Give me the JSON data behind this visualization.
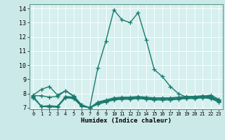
{
  "xlabel": "Humidex (Indice chaleur)",
  "bg_color": "#cce9e9",
  "plot_bg_color": "#d6efef",
  "grid_color": "#b0d0d0",
  "line_color": "#1a7a6e",
  "xlim": [
    -0.5,
    23.5
  ],
  "ylim": [
    6.9,
    14.3
  ],
  "xticks": [
    0,
    1,
    2,
    3,
    4,
    5,
    6,
    7,
    8,
    9,
    10,
    11,
    12,
    13,
    14,
    15,
    16,
    17,
    18,
    19,
    20,
    21,
    22,
    23
  ],
  "yticks": [
    7,
    8,
    9,
    10,
    11,
    12,
    13,
    14
  ],
  "series": [
    {
      "x": [
        0,
        1,
        2,
        3,
        4,
        5,
        6,
        7,
        8,
        9,
        10,
        11,
        12,
        13,
        14,
        15,
        16,
        17,
        18,
        19,
        20,
        21,
        22,
        23
      ],
      "y": [
        7.9,
        8.3,
        8.5,
        7.9,
        8.2,
        7.85,
        7.2,
        7.0,
        9.8,
        11.7,
        13.9,
        13.2,
        13.0,
        13.7,
        11.8,
        9.7,
        9.2,
        8.5,
        8.0,
        7.75,
        7.7,
        7.8,
        7.9,
        7.6
      ]
    },
    {
      "x": [
        0,
        1,
        2,
        3,
        4,
        5,
        6,
        7,
        8,
        9,
        10,
        11,
        12,
        13,
        14,
        15,
        16,
        17,
        18,
        19,
        20,
        21,
        22,
        23
      ],
      "y": [
        7.85,
        7.85,
        7.75,
        7.8,
        8.2,
        7.8,
        7.2,
        7.0,
        7.4,
        7.55,
        7.7,
        7.75,
        7.75,
        7.8,
        7.75,
        7.7,
        7.7,
        7.7,
        7.75,
        7.8,
        7.8,
        7.85,
        7.8,
        7.55
      ]
    },
    {
      "x": [
        0,
        1,
        2,
        3,
        4,
        5,
        6,
        7,
        8,
        9,
        10,
        11,
        12,
        13,
        14,
        15,
        16,
        17,
        18,
        19,
        20,
        21,
        22,
        23
      ],
      "y": [
        7.8,
        7.1,
        7.15,
        7.1,
        7.8,
        7.75,
        7.2,
        7.0,
        7.35,
        7.5,
        7.65,
        7.7,
        7.7,
        7.75,
        7.7,
        7.65,
        7.65,
        7.65,
        7.7,
        7.75,
        7.75,
        7.8,
        7.75,
        7.5
      ]
    },
    {
      "x": [
        0,
        1,
        2,
        3,
        4,
        5,
        6,
        7,
        8,
        9,
        10,
        11,
        12,
        13,
        14,
        15,
        16,
        17,
        18,
        19,
        20,
        21,
        22,
        23
      ],
      "y": [
        7.75,
        7.1,
        7.1,
        7.1,
        7.75,
        7.7,
        7.15,
        7.0,
        7.3,
        7.45,
        7.6,
        7.65,
        7.65,
        7.7,
        7.65,
        7.6,
        7.6,
        7.6,
        7.65,
        7.7,
        7.7,
        7.75,
        7.7,
        7.45
      ]
    },
    {
      "x": [
        0,
        1,
        2,
        3,
        4,
        5,
        6,
        7,
        8,
        9,
        10,
        11,
        12,
        13,
        14,
        15,
        16,
        17,
        18,
        19,
        20,
        21,
        22,
        23
      ],
      "y": [
        7.7,
        7.1,
        7.05,
        7.05,
        7.7,
        7.65,
        7.1,
        7.0,
        7.25,
        7.4,
        7.55,
        7.6,
        7.6,
        7.65,
        7.6,
        7.55,
        7.55,
        7.55,
        7.6,
        7.65,
        7.65,
        7.7,
        7.65,
        7.4
      ]
    }
  ],
  "marker": "+",
  "markersize": 4,
  "linewidth": 1.0
}
